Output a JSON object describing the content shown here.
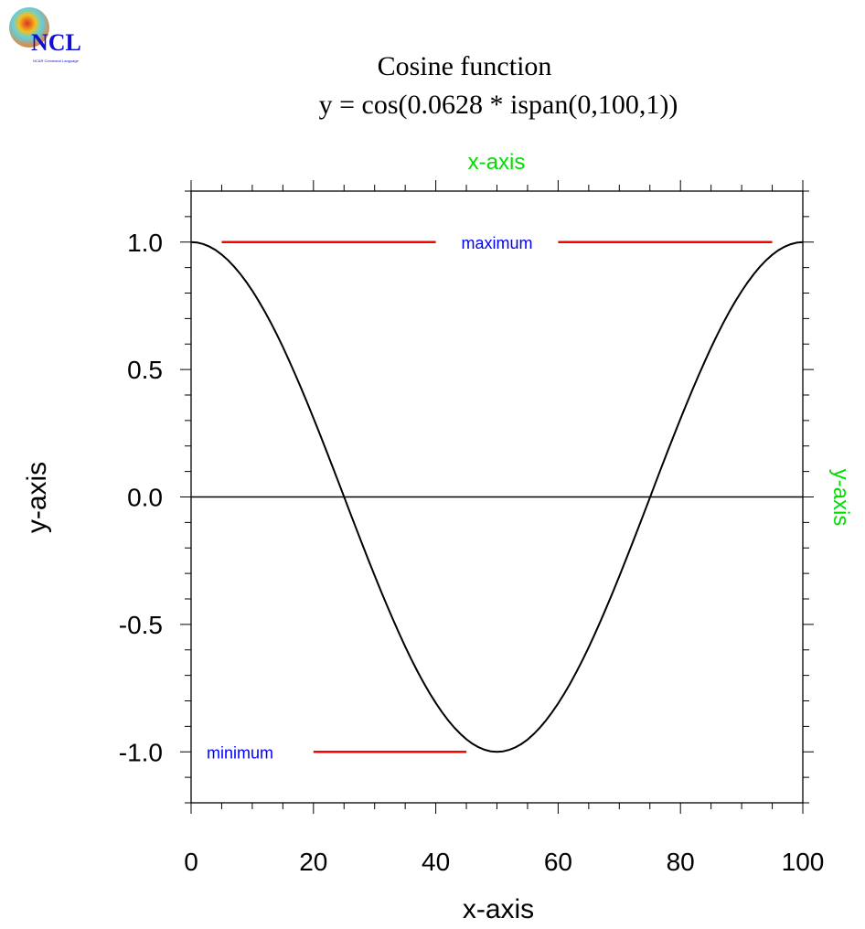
{
  "logo": {
    "text": "NCL",
    "subtext": "NCAR Command Language"
  },
  "chart_data": {
    "type": "line",
    "title": "Cosine function",
    "subtitle": "y = cos(0.0628 * ispan(0,100,1))",
    "xlabel": "x-axis",
    "ylabel": "y-axis",
    "top_label": "x-axis",
    "right_label": "y-axis",
    "xlim": [
      0,
      100
    ],
    "ylim": [
      -1.2,
      1.2
    ],
    "x_ticks": [
      "0",
      "20",
      "40",
      "60",
      "80",
      "100"
    ],
    "y_ticks": [
      "1.0",
      "0.5",
      "0.0",
      "-0.5",
      "-1.0"
    ],
    "function": "cos(0.0628 * x)",
    "series_x_range": [
      0,
      100,
      1
    ],
    "reference_line_y": 0,
    "annotations": [
      {
        "text": "maximum",
        "x": 50,
        "y": 1.0,
        "lines": [
          [
            5,
            40
          ],
          [
            60,
            95
          ]
        ],
        "text_color": "#0000ff",
        "line_color": "#ff0000"
      },
      {
        "text": "minimum",
        "x": 8,
        "y": -1.0,
        "lines": [
          [
            20,
            45
          ]
        ],
        "text_color": "#0000ff",
        "line_color": "#ff0000"
      }
    ],
    "colors": {
      "curve": "#000000",
      "axis_labels_secondary": "#00dd00"
    }
  }
}
